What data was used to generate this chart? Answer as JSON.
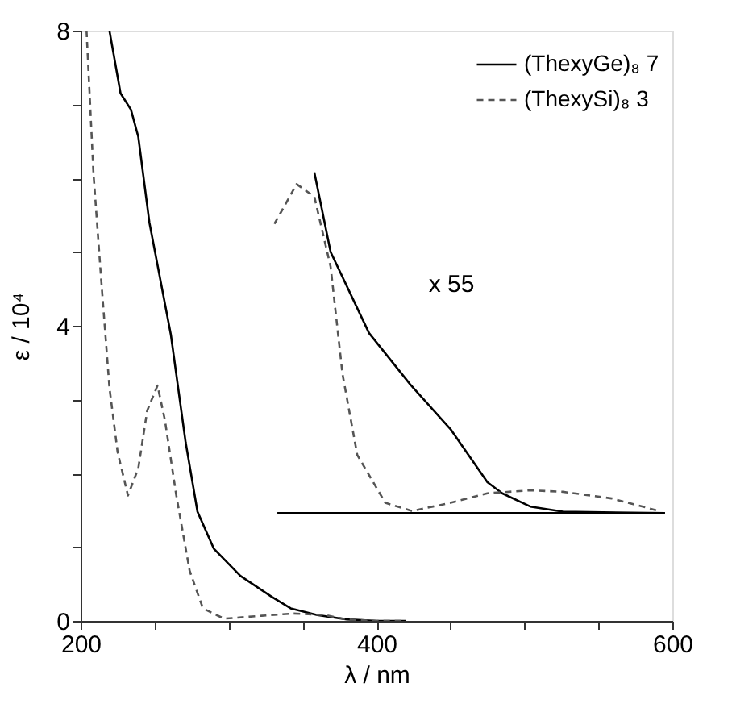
{
  "chart_data": {
    "type": "line",
    "xlabel": "λ / nm",
    "ylabel": "ε / 10⁴",
    "xlim": [
      200,
      600
    ],
    "ylim": [
      0,
      8
    ],
    "xticks": [
      200,
      {
        "value": 250,
        "label": null
      },
      {
        "value": 300,
        "label": null
      },
      {
        "value": 350,
        "label": null
      },
      400,
      {
        "value": 450,
        "label": null
      },
      {
        "value": 500,
        "label": null
      },
      {
        "value": 550,
        "label": null
      },
      600
    ],
    "yticks": [
      0,
      {
        "value": 1,
        "label": null
      },
      {
        "value": 2,
        "label": null
      },
      {
        "value": 3,
        "label": null
      },
      4,
      {
        "value": 5,
        "label": null
      },
      {
        "value": 6,
        "label": null
      },
      {
        "value": 7,
        "label": null
      },
      8
    ],
    "grid": false,
    "legend": "top right",
    "marker": "none",
    "series": [
      {
        "name": "(ThexyGe)₈ 7",
        "color": "#000000",
        "line_style": "solid",
        "x": [
          219.5,
          227,
          234,
          239,
          246.5,
          261,
          271,
          279,
          290,
          308,
          329,
          342,
          360,
          380,
          400,
          420
        ],
        "values": [
          8.0,
          7.15,
          6.93,
          6.56,
          5.4,
          3.88,
          2.42,
          1.48,
          0.98,
          0.61,
          0.33,
          0.17,
          0.08,
          0.02,
          0.0,
          0.0
        ]
      },
      {
        "name": "(ThexySi)₈ 3",
        "color": "#555555",
        "line_style": "dashed",
        "x": [
          204,
          208.7,
          214,
          219.5,
          225,
          232,
          239,
          245,
          252,
          257,
          264.7,
          273.7,
          282.7,
          297,
          322.5,
          344,
          365,
          380,
          400,
          420
        ],
        "values": [
          8.0,
          6.06,
          4.6,
          3.16,
          2.29,
          1.7,
          2.07,
          2.85,
          3.19,
          2.72,
          1.7,
          0.68,
          0.17,
          0.03,
          0.07,
          0.1,
          0.08,
          0.02,
          0.0,
          0.0
        ]
      },
      {
        "color": "#000000",
        "line_style": "solid",
        "x": [
          333,
          595
        ],
        "values": [
          1.46,
          1.46
        ]
      },
      {
        "color": "#000000",
        "line_style": "solid",
        "x": [
          358,
          369,
          395,
          423,
          450,
          475,
          485,
          504,
          526,
          595
        ],
        "values": [
          6.08,
          5.0,
          3.9,
          3.2,
          2.6,
          1.88,
          1.73,
          1.55,
          1.48,
          1.46
        ]
      },
      {
        "color": "#555555",
        "line_style": "dashed",
        "x": [
          331,
          346,
          358,
          369,
          377,
          387,
          406,
          424,
          450,
          475,
          504,
          526,
          559,
          591
        ],
        "values": [
          5.38,
          5.92,
          5.75,
          4.8,
          3.35,
          2.25,
          1.6,
          1.49,
          1.6,
          1.73,
          1.77,
          1.75,
          1.66,
          1.49
        ]
      }
    ],
    "annotations": [
      "x 55"
    ]
  }
}
